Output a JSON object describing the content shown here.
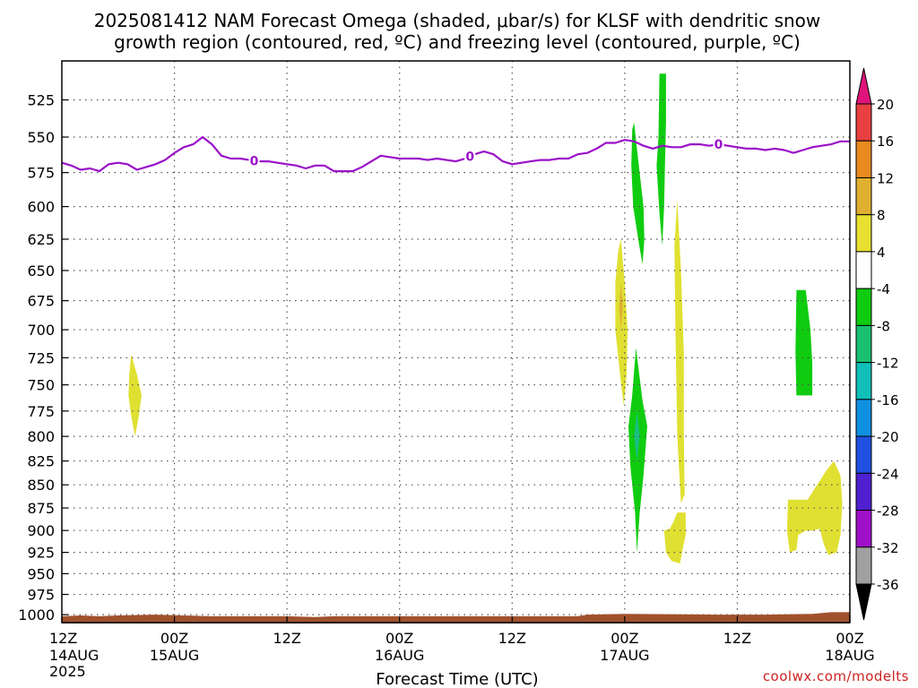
{
  "page": {
    "title_line1": "2025081412 NAM Forecast Omega (shaded, μbar/s) for KLSF with dendritic snow",
    "title_line2": "growth region (contoured, red, ºC) and freezing level (contoured, purple, ºC)",
    "credit": "coolwx.com/modelts"
  },
  "chart_data": {
    "type": "heatmap",
    "xlabel": "Forecast Time (UTC)",
    "ylabel": "",
    "x_unit": "hours since 2025-08-14 12Z",
    "xlim": [
      0,
      84
    ],
    "ylim": [
      1010,
      500
    ],
    "y_scale": "log-pressure",
    "grid": true,
    "x_ticks": [
      {
        "h": 0,
        "l1": "12Z",
        "l2": "14AUG",
        "l3": "2025"
      },
      {
        "h": 12,
        "l1": "00Z",
        "l2": "15AUG",
        "l3": ""
      },
      {
        "h": 24,
        "l1": "12Z",
        "l2": "",
        "l3": ""
      },
      {
        "h": 36,
        "l1": "00Z",
        "l2": "16AUG",
        "l3": ""
      },
      {
        "h": 48,
        "l1": "12Z",
        "l2": "",
        "l3": ""
      },
      {
        "h": 60,
        "l1": "00Z",
        "l2": "17AUG",
        "l3": ""
      },
      {
        "h": 72,
        "l1": "12Z",
        "l2": "",
        "l3": ""
      },
      {
        "h": 84,
        "l1": "00Z",
        "l2": "18AUG",
        "l3": ""
      }
    ],
    "y_ticks": [
      525,
      550,
      575,
      600,
      625,
      650,
      675,
      700,
      725,
      750,
      775,
      800,
      825,
      850,
      875,
      900,
      925,
      950,
      975,
      1000
    ],
    "colorbar": {
      "levels": [
        20,
        16,
        12,
        8,
        4,
        -4,
        -8,
        -12,
        -16,
        -20,
        -24,
        -28,
        -32,
        -36
      ],
      "colors": [
        "#e8e030",
        "#e0b030",
        "#e88a20",
        "#e84a30",
        "#e0147a",
        "#e8e030",
        "#ffffff",
        "#10cc10",
        "#18c060",
        "#10c0b8",
        "#1090e0",
        "#2050e0",
        "#5020d0",
        "#9010c8",
        "#a0a0a0",
        "#000000"
      ],
      "segments": [
        {
          "color": "#e0147a",
          "kind": "triangle-top"
        },
        {
          "color": "#e84040",
          "kind": "box"
        },
        {
          "color": "#e88a20",
          "kind": "box"
        },
        {
          "color": "#e0b030",
          "kind": "box"
        },
        {
          "color": "#e8e030",
          "kind": "box"
        },
        {
          "color": "#ffffff",
          "kind": "box"
        },
        {
          "color": "#10cc10",
          "kind": "box"
        },
        {
          "color": "#18c070",
          "kind": "box"
        },
        {
          "color": "#10c0b8",
          "kind": "box"
        },
        {
          "color": "#1090e0",
          "kind": "box"
        },
        {
          "color": "#2050e0",
          "kind": "box"
        },
        {
          "color": "#5020d0",
          "kind": "box"
        },
        {
          "color": "#a010c8",
          "kind": "box"
        },
        {
          "color": "#a0a0a0",
          "kind": "box"
        },
        {
          "color": "#000000",
          "kind": "triangle-bottom"
        }
      ]
    },
    "freezing_level": {
      "label": "0",
      "color": "#9a10c8",
      "label_hours": [
        20.5,
        43.5,
        70
      ],
      "points": [
        [
          0,
          568
        ],
        [
          1,
          570
        ],
        [
          2,
          573
        ],
        [
          3,
          572
        ],
        [
          4,
          574
        ],
        [
          5,
          569
        ],
        [
          6,
          568
        ],
        [
          7,
          569
        ],
        [
          8,
          573
        ],
        [
          9,
          571
        ],
        [
          10,
          569
        ],
        [
          11,
          566
        ],
        [
          12,
          561
        ],
        [
          13,
          557
        ],
        [
          14,
          555
        ],
        [
          15,
          550
        ],
        [
          16,
          555
        ],
        [
          17,
          563
        ],
        [
          18,
          565
        ],
        [
          19,
          565
        ],
        [
          20,
          566
        ],
        [
          21,
          567
        ],
        [
          22,
          567
        ],
        [
          23,
          568
        ],
        [
          24,
          569
        ],
        [
          25,
          570
        ],
        [
          26,
          572
        ],
        [
          27,
          570
        ],
        [
          28,
          570
        ],
        [
          29,
          574
        ],
        [
          30,
          574
        ],
        [
          31,
          574
        ],
        [
          32,
          571
        ],
        [
          33,
          567
        ],
        [
          34,
          563
        ],
        [
          35,
          564
        ],
        [
          36,
          565
        ],
        [
          37,
          565
        ],
        [
          38,
          565
        ],
        [
          39,
          566
        ],
        [
          40,
          565
        ],
        [
          41,
          566
        ],
        [
          42,
          567
        ],
        [
          43,
          565
        ],
        [
          44,
          562
        ],
        [
          45,
          560
        ],
        [
          46,
          562
        ],
        [
          47,
          567
        ],
        [
          48,
          569
        ],
        [
          49,
          568
        ],
        [
          50,
          567
        ],
        [
          51,
          566
        ],
        [
          52,
          566
        ],
        [
          53,
          565
        ],
        [
          54,
          565
        ],
        [
          55,
          562
        ],
        [
          56,
          561
        ],
        [
          57,
          558
        ],
        [
          58,
          554
        ],
        [
          59,
          554
        ],
        [
          60,
          552
        ],
        [
          61,
          553
        ],
        [
          62,
          556
        ],
        [
          63,
          558
        ],
        [
          64,
          556
        ],
        [
          65,
          557
        ],
        [
          66,
          557
        ],
        [
          67,
          555
        ],
        [
          68,
          555
        ],
        [
          69,
          556
        ],
        [
          70,
          555
        ],
        [
          71,
          556
        ],
        [
          72,
          557
        ],
        [
          73,
          558
        ],
        [
          74,
          558
        ],
        [
          75,
          559
        ],
        [
          76,
          558
        ],
        [
          77,
          559
        ],
        [
          78,
          561
        ],
        [
          79,
          559
        ],
        [
          80,
          557
        ],
        [
          81,
          556
        ],
        [
          82,
          555
        ],
        [
          83,
          553
        ],
        [
          84,
          553
        ]
      ]
    },
    "ground": {
      "color": "#a0522d",
      "points": [
        [
          0,
          1002
        ],
        [
          2,
          1001
        ],
        [
          4,
          1002
        ],
        [
          6,
          1001
        ],
        [
          10,
          1000
        ],
        [
          13,
          1001
        ],
        [
          16,
          1002
        ],
        [
          20,
          1002
        ],
        [
          24,
          1002
        ],
        [
          27,
          1003
        ],
        [
          29,
          1002
        ],
        [
          33,
          1002
        ],
        [
          40,
          1002
        ],
        [
          50,
          1002
        ],
        [
          55,
          1002
        ],
        [
          56,
          1000
        ],
        [
          60,
          999
        ],
        [
          70,
          1000
        ],
        [
          75,
          1000
        ],
        [
          80,
          999
        ],
        [
          82,
          997
        ],
        [
          84,
          997
        ]
      ]
    },
    "omega_regions": [
      {
        "name": "omega-positive",
        "value": 4,
        "color": "#e0e032",
        "points": [
          [
            7.4,
            722
          ],
          [
            8.0,
            740
          ],
          [
            8.5,
            760
          ],
          [
            8.2,
            780
          ],
          [
            7.8,
            800
          ],
          [
            7.4,
            780
          ],
          [
            7.1,
            760
          ],
          [
            7.2,
            740
          ]
        ]
      },
      {
        "name": "omega-positive",
        "value": 4,
        "color": "#e0e032",
        "points": [
          [
            59.6,
            625
          ],
          [
            60.0,
            660
          ],
          [
            60.3,
            700
          ],
          [
            60.2,
            740
          ],
          [
            59.9,
            770
          ],
          [
            59.5,
            740
          ],
          [
            59.0,
            700
          ],
          [
            59.0,
            660
          ],
          [
            59.3,
            635
          ]
        ]
      },
      {
        "name": "omega-positive",
        "value": 8,
        "color": "#e0b030",
        "points": [
          [
            59.6,
            660
          ],
          [
            59.8,
            680
          ],
          [
            59.6,
            700
          ],
          [
            59.4,
            680
          ]
        ]
      },
      {
        "name": "omega-positive",
        "value": 4,
        "color": "#e0e032",
        "points": [
          [
            65.6,
            595
          ],
          [
            66.0,
            650
          ],
          [
            66.3,
            720
          ],
          [
            66.3,
            800
          ],
          [
            66.4,
            860
          ],
          [
            66.0,
            870
          ],
          [
            65.6,
            800
          ],
          [
            65.4,
            700
          ],
          [
            65.3,
            630
          ]
        ]
      },
      {
        "name": "omega-positive",
        "value": 4,
        "color": "#e0e032",
        "points": [
          [
            65.6,
            880
          ],
          [
            66.5,
            880
          ],
          [
            66.5,
            905
          ],
          [
            66.2,
            920
          ],
          [
            65.9,
            938
          ],
          [
            65.0,
            935
          ],
          [
            64.4,
            925
          ],
          [
            64.2,
            900
          ],
          [
            64.8,
            898
          ],
          [
            65.2,
            890
          ]
        ]
      },
      {
        "name": "omega-positive",
        "value": 4,
        "color": "#e0e032",
        "points": [
          [
            77.4,
            866
          ],
          [
            79.5,
            866
          ],
          [
            80.5,
            850
          ],
          [
            81.5,
            835
          ],
          [
            82.3,
            825
          ],
          [
            83.0,
            840
          ],
          [
            83.2,
            870
          ],
          [
            83.0,
            905
          ],
          [
            82.6,
            925
          ],
          [
            81.7,
            928
          ],
          [
            81.2,
            915
          ],
          [
            80.8,
            898
          ],
          [
            80.0,
            900
          ],
          [
            79.3,
            900
          ],
          [
            78.5,
            905
          ],
          [
            78.3,
            922
          ],
          [
            77.6,
            925
          ],
          [
            77.3,
            900
          ]
        ]
      },
      {
        "name": "omega-negative",
        "value": -4,
        "color": "#10cc10",
        "points": [
          [
            61.0,
            540
          ],
          [
            61.5,
            570
          ],
          [
            62.0,
            600
          ],
          [
            62.1,
            625
          ],
          [
            61.9,
            645
          ],
          [
            61.5,
            628
          ],
          [
            60.9,
            600
          ],
          [
            60.7,
            570
          ],
          [
            60.8,
            545
          ]
        ]
      },
      {
        "name": "omega-negative",
        "value": -4,
        "color": "#10cc10",
        "points": [
          [
            63.7,
            508
          ],
          [
            64.4,
            508
          ],
          [
            64.4,
            540
          ],
          [
            64.3,
            565
          ],
          [
            64.2,
            600
          ],
          [
            64.0,
            630
          ],
          [
            63.7,
            605
          ],
          [
            63.4,
            570
          ],
          [
            63.6,
            550
          ]
        ]
      },
      {
        "name": "omega-negative",
        "value": -4,
        "color": "#10cc10",
        "points": [
          [
            61.2,
            716
          ],
          [
            61.9,
            765
          ],
          [
            62.4,
            790
          ],
          [
            62.0,
            840
          ],
          [
            61.6,
            880
          ],
          [
            61.3,
            925
          ],
          [
            61.1,
            880
          ],
          [
            60.6,
            830
          ],
          [
            60.4,
            790
          ],
          [
            60.8,
            760
          ]
        ]
      },
      {
        "name": "omega-negative",
        "value": -8,
        "color": "#18c080",
        "points": [
          [
            61.3,
            775
          ],
          [
            61.6,
            800
          ],
          [
            61.3,
            825
          ],
          [
            61.0,
            800
          ]
        ]
      },
      {
        "name": "omega-negative",
        "value": -4,
        "color": "#10cc10",
        "points": [
          [
            78.3,
            666
          ],
          [
            79.3,
            666
          ],
          [
            79.8,
            700
          ],
          [
            80.0,
            730
          ],
          [
            80.0,
            760
          ],
          [
            78.3,
            760
          ],
          [
            78.2,
            720
          ]
        ]
      }
    ]
  }
}
